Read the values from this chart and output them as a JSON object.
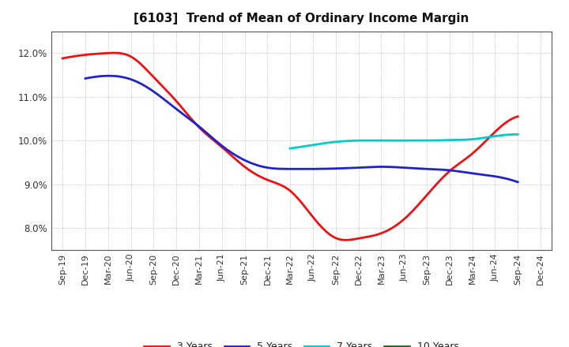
{
  "title": "[6103]  Trend of Mean of Ordinary Income Margin",
  "x_labels": [
    "Sep-19",
    "Dec-19",
    "Mar-20",
    "Jun-20",
    "Sep-20",
    "Dec-20",
    "Mar-21",
    "Jun-21",
    "Sep-21",
    "Dec-21",
    "Mar-22",
    "Jun-22",
    "Sep-22",
    "Dec-22",
    "Mar-23",
    "Jun-23",
    "Sep-23",
    "Dec-23",
    "Mar-24",
    "Jun-24",
    "Sep-24",
    "Dec-24"
  ],
  "y3": [
    11.88,
    11.96,
    12.0,
    11.92,
    11.45,
    10.9,
    10.3,
    9.85,
    9.4,
    9.1,
    8.85,
    8.25,
    7.77,
    7.76,
    7.88,
    8.2,
    8.75,
    9.3,
    9.7,
    10.2,
    10.55,
    null
  ],
  "y5": [
    null,
    11.42,
    11.48,
    11.4,
    11.12,
    10.72,
    10.32,
    9.88,
    9.55,
    9.38,
    9.35,
    9.35,
    9.36,
    9.38,
    9.4,
    9.38,
    9.35,
    9.32,
    9.25,
    9.18,
    9.05,
    null
  ],
  "y7": [
    null,
    null,
    null,
    null,
    null,
    null,
    null,
    null,
    null,
    null,
    9.82,
    9.9,
    9.97,
    10.0,
    10.0,
    10.0,
    10.0,
    10.01,
    10.03,
    10.1,
    10.14,
    null
  ],
  "y10": [
    null,
    null,
    null,
    null,
    null,
    null,
    null,
    null,
    null,
    null,
    null,
    null,
    null,
    null,
    null,
    null,
    null,
    null,
    null,
    null,
    null,
    null
  ],
  "color_3y": "#ee1111",
  "color_5y": "#2222cc",
  "color_7y": "#00cccc",
  "color_10y": "#226622",
  "ylim": [
    7.5,
    12.5
  ],
  "yticks": [
    8.0,
    9.0,
    10.0,
    11.0,
    12.0
  ],
  "background_color": "#ffffff",
  "plot_bg_color": "#ffffff",
  "grid_color": "#999999",
  "line_width": 2.0,
  "title_fontsize": 11,
  "tick_fontsize": 8
}
